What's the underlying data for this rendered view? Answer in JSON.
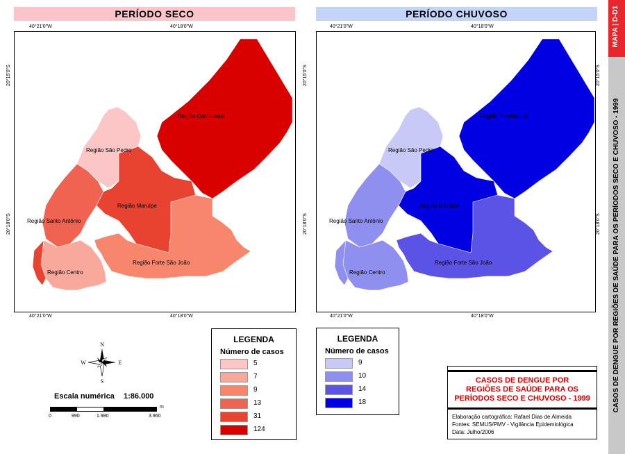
{
  "left_map": {
    "title": "PERÍODO SECO",
    "title_bg": "#fbc4c8",
    "top_lon_ticks": [
      "40°21'0\"W",
      "40°18'0\"W"
    ],
    "bottom_lon_ticks": [
      "40°21'0\"W",
      "40°18'0\"W"
    ],
    "left_lat_ticks": [
      "20°15'0\"S",
      "20°18'0\"S"
    ],
    "regions": {
      "continental": {
        "label": "Região Continental",
        "color": "#d90000"
      },
      "sao_pedro": {
        "label": "Região São Pedro",
        "color": "#fcc6c6"
      },
      "maruipe": {
        "label": "Região Maruípe",
        "color": "#e84330"
      },
      "santo_antonio": {
        "label": "Região Santo Antônio",
        "color": "#ef6350"
      },
      "centro": {
        "label": "Região Centro",
        "color": "#f9a99c"
      },
      "forte_sao_joao": {
        "label": "Região Forte São João",
        "color": "#f7866c"
      },
      "west_tip": {
        "color": "#e84330"
      }
    }
  },
  "right_map": {
    "title": "PERÍODO CHUVOSO",
    "title_bg": "#c3d4fb",
    "top_lon_ticks": [
      "40°21'0\"W",
      "40°18'0\"W"
    ],
    "bottom_lon_ticks": [
      "40°21'0\"W",
      "40°18'0\"W"
    ],
    "right_lat_ticks": [
      "20°15'0\"S",
      "20°18'0\"S"
    ],
    "regions": {
      "continental": {
        "label": "Região Continental",
        "color": "#0000e0"
      },
      "sao_pedro": {
        "label": "Região São Pedro",
        "color": "#c9c9f7"
      },
      "maruipe": {
        "label": "Região Maruípe",
        "color": "#0000e0"
      },
      "santo_antonio": {
        "label": "Região Santo Antônio",
        "color": "#8f8ff0"
      },
      "centro": {
        "label": "Região Centro",
        "color": "#8f8ff0"
      },
      "forte_sao_joao": {
        "label": "Região Forte São João",
        "color": "#5b52e6"
      },
      "west_tip": {
        "color": "#8f8ff0"
      }
    }
  },
  "compass": {
    "n": "N",
    "s": "S",
    "e": "E",
    "w": "W"
  },
  "scale": {
    "label": "Escala numérica",
    "value": "1:86.000",
    "ticks": [
      "0",
      "990",
      "1.980",
      "3.960"
    ],
    "unit": "m"
  },
  "legend_seco": {
    "title": "LEGENDA",
    "subtitle": "Número de casos",
    "items": [
      {
        "label": "5",
        "color": "#fcc6c6"
      },
      {
        "label": "7",
        "color": "#f9a99c"
      },
      {
        "label": "9",
        "color": "#f7866c"
      },
      {
        "label": "13",
        "color": "#ef6350"
      },
      {
        "label": "31",
        "color": "#e84330"
      },
      {
        "label": "124",
        "color": "#d90000"
      }
    ]
  },
  "legend_chuvoso": {
    "title": "LEGENDA",
    "subtitle": "Número de casos",
    "items": [
      {
        "label": "9",
        "color": "#c9c9f7"
      },
      {
        "label": "10",
        "color": "#8f8ff0"
      },
      {
        "label": "14",
        "color": "#5b52e6"
      },
      {
        "label": "18",
        "color": "#0000e0"
      }
    ]
  },
  "info_box": {
    "title_lines": [
      "CASOS DE DENGUE POR",
      "REGIÕES DE SAÚDE PARA OS",
      "PERÍODOS SECO E CHUVOSO - 1999"
    ],
    "title_color": "#e00000",
    "credits": [
      "Elaboração cartográfica: Rafael Dias de Almeida",
      "Fontes: SEMUS/PMV - Vigilância Epidemiológica",
      "Data: Julho/2006"
    ]
  },
  "side_strip": {
    "map_code": "MAPA | D-D1",
    "map_code_bg": "#e8262c",
    "strip_bg": "#c8c8c8",
    "full_title": "CASOS DE DENGUE POR REGIÕES DE SAÚDE PARA OS PERÍODOS SECO E CHUVOSO - 1999"
  }
}
